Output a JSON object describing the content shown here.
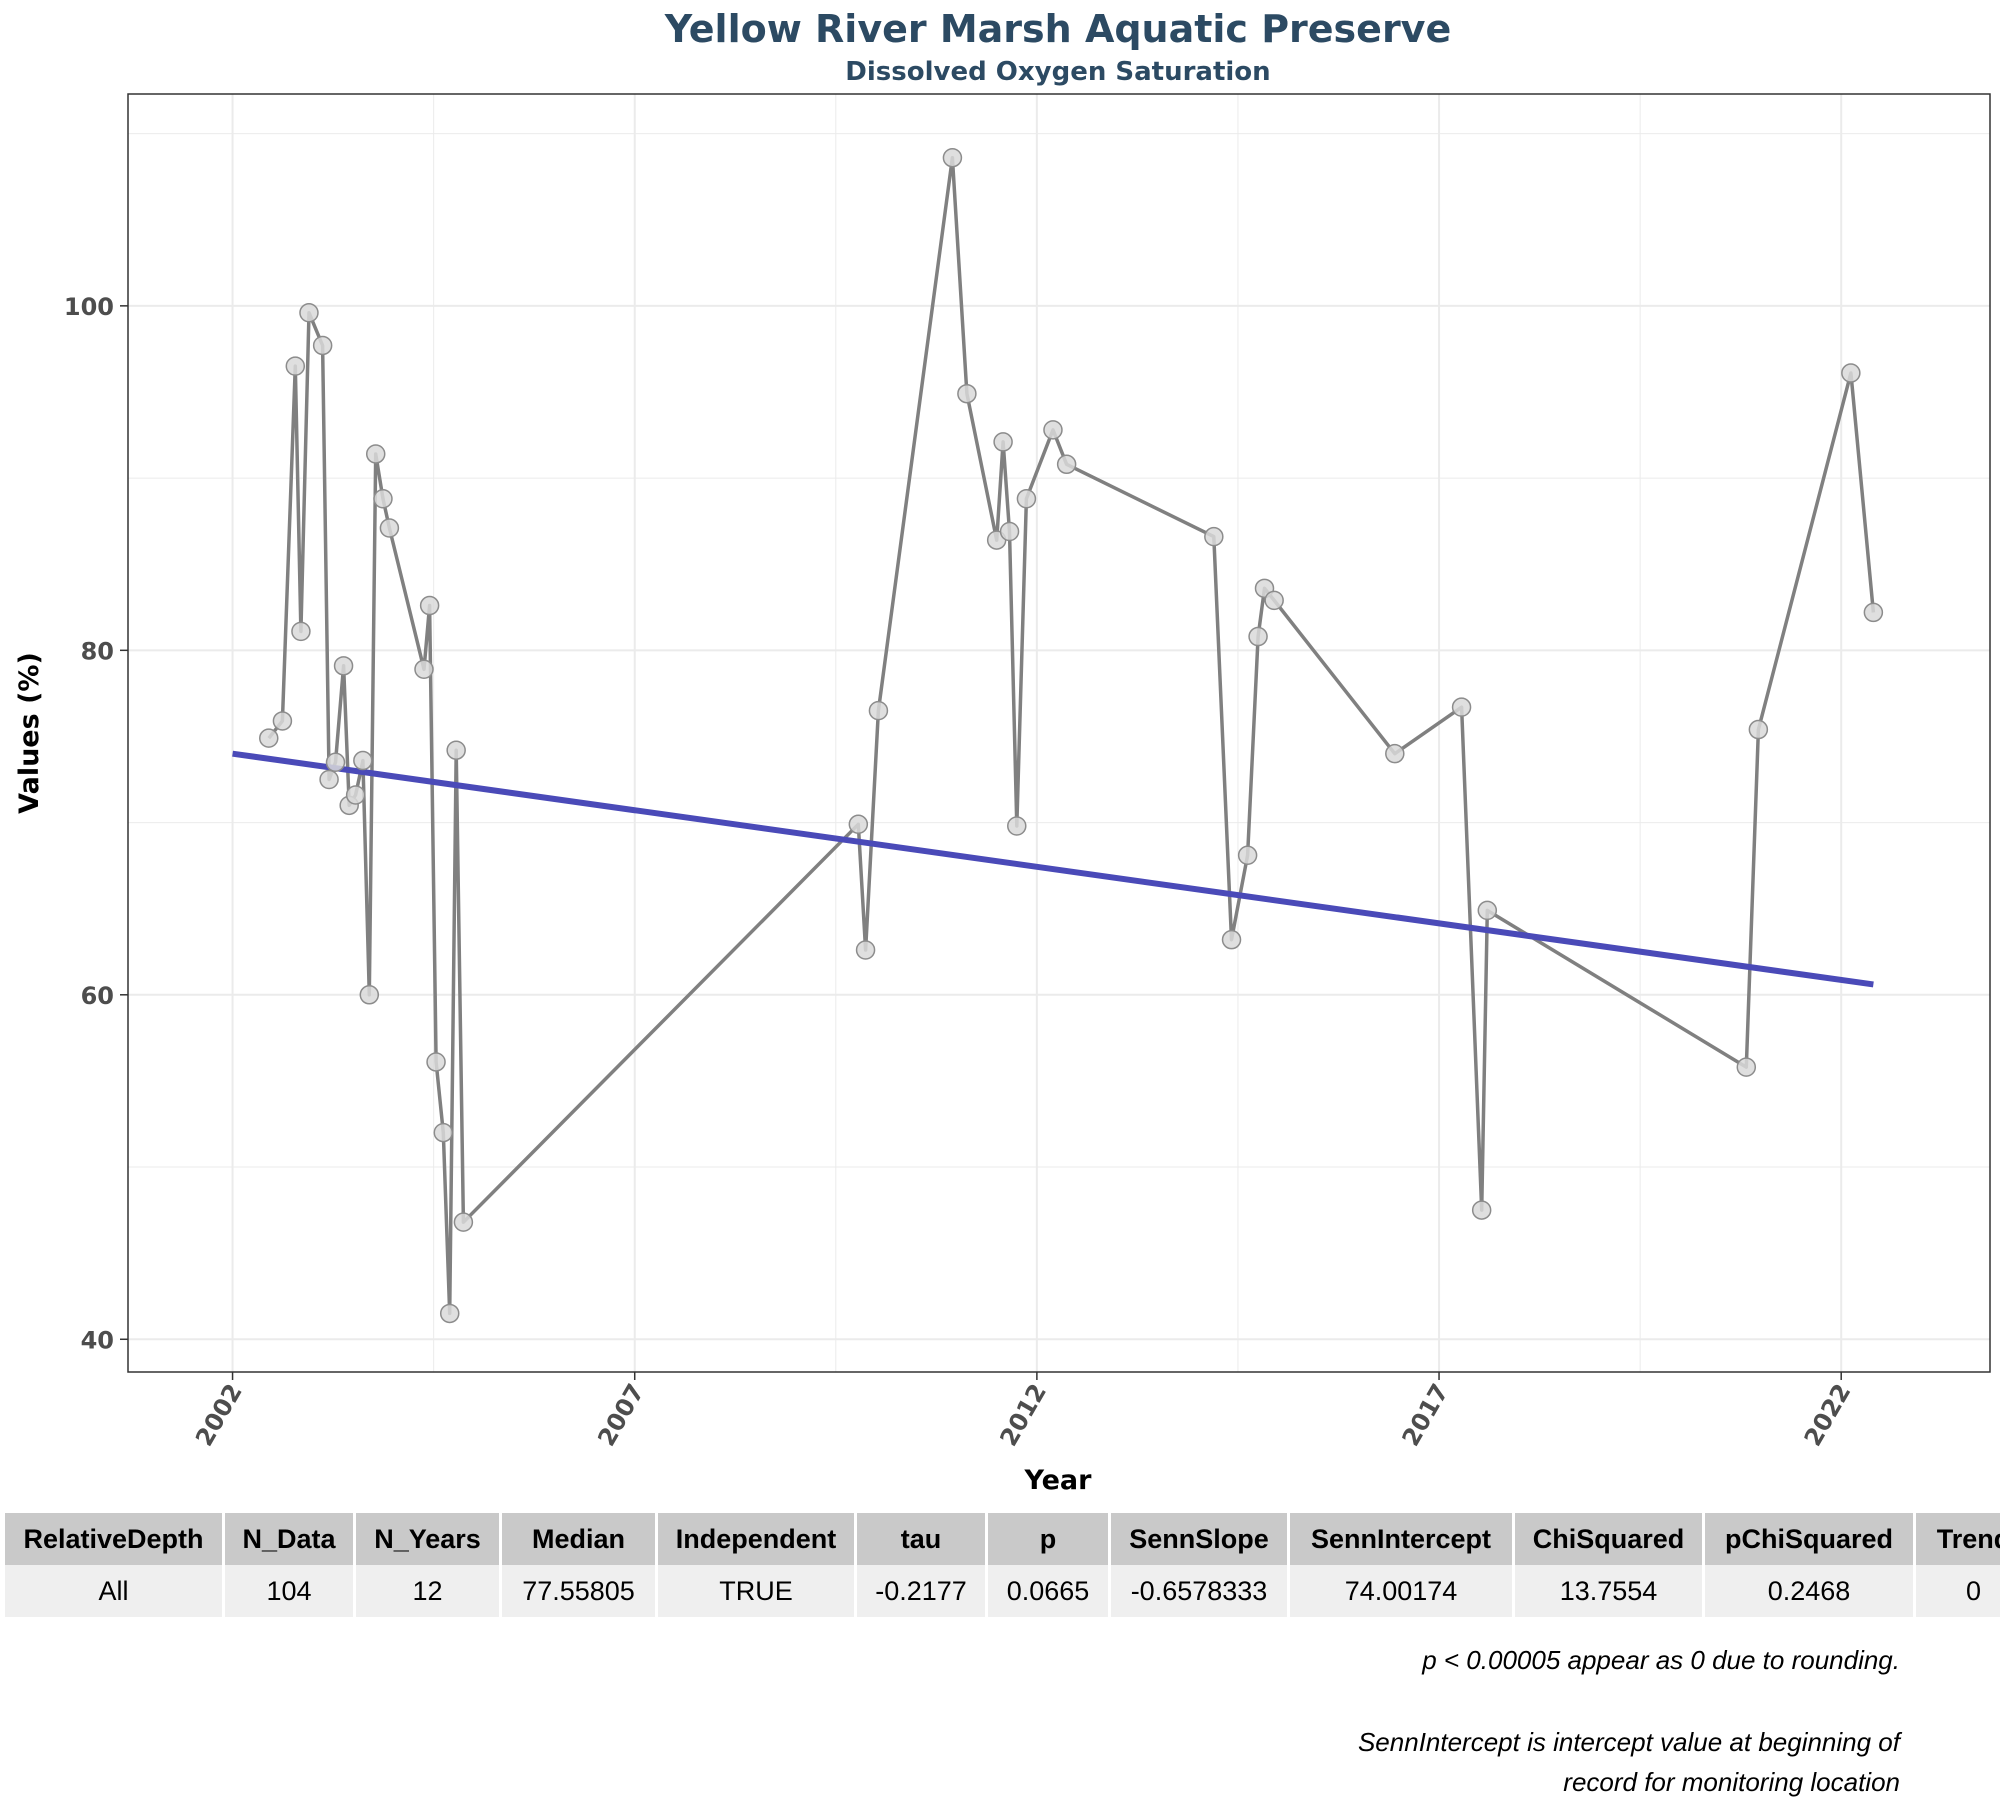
{
  "chart_data": {
    "type": "line",
    "title": "Yellow River Marsh Aquatic Preserve",
    "subtitle": "Dissolved Oxygen Saturation",
    "xlabel": "Year",
    "ylabel": "Values (%)",
    "xlim": [
      2000.7,
      2023.85
    ],
    "ylim": [
      38.1,
      112.3
    ],
    "xticks": [
      2002,
      2007,
      2012,
      2017,
      2022
    ],
    "yticks": [
      40,
      60,
      80,
      100
    ],
    "grid": true,
    "legend": "none",
    "colors": {
      "series_line": "#808080",
      "point_fill": "#d9d9d9",
      "point_stroke": "#8c8c8c",
      "trend_line": "#4a4ab8",
      "grid": "#ebebeb"
    },
    "series": [
      {
        "values": [
          [
            2002.45,
            74.9
          ],
          [
            2002.62,
            75.9
          ],
          [
            2002.78,
            96.5
          ],
          [
            2002.85,
            81.1
          ],
          [
            2002.95,
            99.6
          ],
          [
            2003.12,
            97.7
          ],
          [
            2003.2,
            72.5
          ],
          [
            2003.28,
            73.5
          ],
          [
            2003.38,
            79.1
          ],
          [
            2003.45,
            71.0
          ],
          [
            2003.53,
            71.6
          ],
          [
            2003.62,
            73.6
          ],
          [
            2003.7,
            60.0
          ],
          [
            2003.78,
            91.4
          ],
          [
            2003.87,
            88.8
          ],
          [
            2003.95,
            87.1
          ],
          [
            2004.38,
            78.9
          ],
          [
            2004.45,
            82.6
          ],
          [
            2004.53,
            56.1
          ],
          [
            2004.62,
            52.0
          ],
          [
            2004.7,
            41.5
          ],
          [
            2004.78,
            74.2
          ],
          [
            2004.87,
            46.8
          ],
          [
            2009.78,
            69.9
          ],
          [
            2009.87,
            62.6
          ],
          [
            2010.03,
            76.5
          ],
          [
            2010.95,
            108.6
          ],
          [
            2011.13,
            94.9
          ],
          [
            2011.5,
            86.4
          ],
          [
            2011.58,
            92.1
          ],
          [
            2011.66,
            86.9
          ],
          [
            2011.75,
            69.8
          ],
          [
            2011.87,
            88.8
          ],
          [
            2012.2,
            92.8
          ],
          [
            2012.37,
            90.8
          ],
          [
            2014.2,
            86.6
          ],
          [
            2014.42,
            63.2
          ],
          [
            2014.62,
            68.1
          ],
          [
            2014.75,
            80.8
          ],
          [
            2014.83,
            83.6
          ],
          [
            2014.95,
            82.9
          ],
          [
            2016.45,
            74.0
          ],
          [
            2017.28,
            76.7
          ],
          [
            2017.53,
            47.5
          ],
          [
            2017.6,
            64.9
          ],
          [
            2020.82,
            55.8
          ],
          [
            2020.97,
            75.4
          ],
          [
            2022.12,
            96.1
          ],
          [
            2022.4,
            82.2
          ]
        ]
      }
    ],
    "trend": {
      "x": [
        2002.0,
        2022.4
      ],
      "y": [
        74.0,
        60.6
      ]
    }
  },
  "stats_table": {
    "headers": [
      "RelativeDepth",
      "N_Data",
      "N_Years",
      "Median",
      "Independent",
      "tau",
      "p",
      "SennSlope",
      "SennIntercept",
      "ChiSquared",
      "pChiSquared",
      "Trend"
    ],
    "row": [
      "All",
      "104",
      "12",
      "77.55805",
      "TRUE",
      "-0.2177",
      "0.0665",
      "-0.6578333",
      "74.00174",
      "13.7554",
      "0.2468",
      "0"
    ]
  },
  "notes": {
    "rounding": "p < 0.00005 appear as 0 due to rounding.",
    "intercept_line1": "SennIntercept is intercept value at beginning of",
    "intercept_line2": "record for monitoring location"
  }
}
